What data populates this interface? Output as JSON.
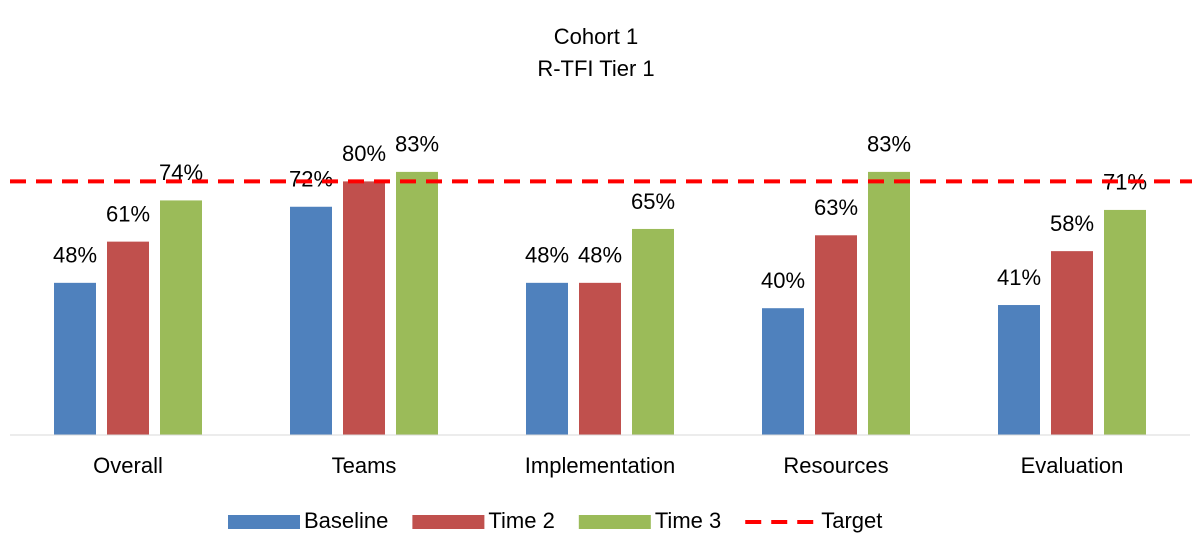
{
  "chart_data": {
    "type": "bar",
    "title": "Cohort 1",
    "subtitle": "R-TFI Tier 1",
    "categories": [
      "Overall",
      "Teams",
      "Implementation",
      "Resources",
      "Evaluation"
    ],
    "series": [
      {
        "name": "Baseline",
        "color": "#4f81bd",
        "values": [
          48,
          72,
          48,
          40,
          41
        ],
        "value_labels": [
          "48%",
          "72%",
          "48%",
          "40%",
          "41%"
        ]
      },
      {
        "name": "Time 2",
        "color": "#c0504d",
        "values": [
          61,
          80,
          48,
          63,
          58
        ],
        "value_labels": [
          "61%",
          "80%",
          "48%",
          "63%",
          "58%"
        ]
      },
      {
        "name": "Time 3",
        "color": "#9bbb59",
        "values": [
          74,
          83,
          65,
          83,
          71
        ],
        "value_labels": [
          "74%",
          "83%",
          "65%",
          "83%",
          "71%"
        ]
      }
    ],
    "target": {
      "name": "Target",
      "color": "#ff0000",
      "value": 80
    },
    "ylim": [
      0,
      100
    ],
    "legend": "bottom"
  }
}
